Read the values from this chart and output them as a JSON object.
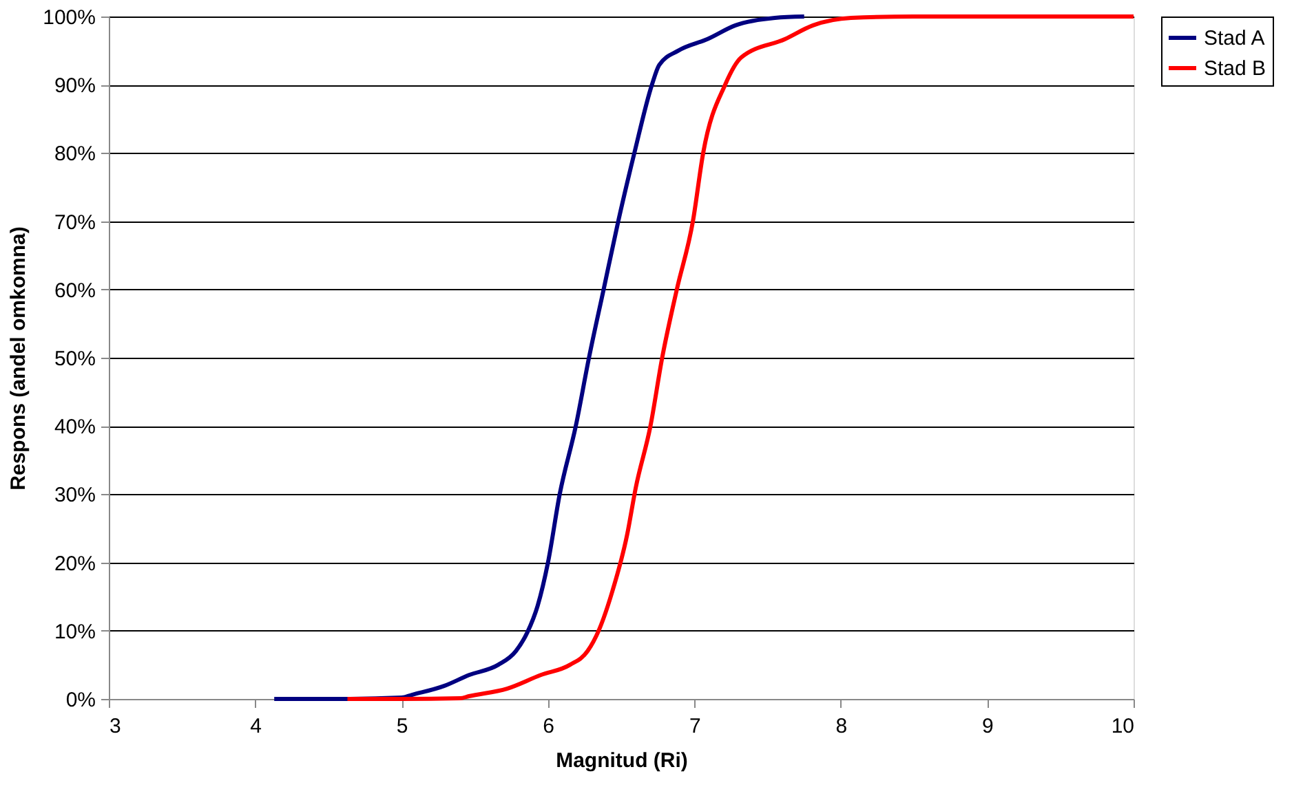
{
  "chart_data": {
    "type": "line",
    "xlabel": "Magnitud (Ri)",
    "ylabel": "Respons (andel omkomna)",
    "xlim": [
      3,
      10
    ],
    "xticks": [
      3,
      4,
      5,
      6,
      7,
      8,
      9,
      10
    ],
    "ylim": [
      0,
      100
    ],
    "yticks": [
      {
        "value": 0,
        "label": "0%"
      },
      {
        "value": 10,
        "label": "10%"
      },
      {
        "value": 20,
        "label": "20%"
      },
      {
        "value": 30,
        "label": "30%"
      },
      {
        "value": 40,
        "label": "40%"
      },
      {
        "value": 50,
        "label": "50%"
      },
      {
        "value": 60,
        "label": "60%"
      },
      {
        "value": 70,
        "label": "70%"
      },
      {
        "value": 80,
        "label": "80%"
      },
      {
        "value": 90,
        "label": "90%"
      },
      {
        "value": 100,
        "label": "100%"
      }
    ],
    "grid": "y",
    "legend": "right",
    "marker": "none",
    "line_style": "solid",
    "series": [
      {
        "name": "Stad A",
        "color": "#000080",
        "x": [
          4.13,
          4.6,
          5.0,
          5.07,
          5.29,
          5.46,
          5.66,
          5.78,
          5.86,
          5.93,
          6.0,
          6.08,
          6.19,
          6.28,
          6.38,
          6.48,
          6.59,
          6.71,
          6.76,
          6.89,
          7.09,
          7.28,
          7.55,
          7.75
        ],
        "values": [
          0,
          0,
          0.2,
          0.6,
          1.9,
          3.5,
          5,
          7,
          9.8,
          13.7,
          20,
          30,
          40,
          50,
          60,
          70,
          80,
          90,
          92.9,
          95,
          96.7,
          98.7,
          99.8,
          100
        ]
      },
      {
        "name": "Stad B",
        "color": "#ff0000",
        "x": [
          4.63,
          5.0,
          5.4,
          5.46,
          5.72,
          5.95,
          6.15,
          6.27,
          6.35,
          6.44,
          6.54,
          6.6,
          6.7,
          6.78,
          6.88,
          6.99,
          7.06,
          7.21,
          7.32,
          7.62,
          7.81,
          8.07,
          8.5,
          10
        ],
        "values": [
          0,
          0,
          0.1,
          0.4,
          1.5,
          3.5,
          5,
          7,
          10.2,
          15.8,
          24,
          31,
          40,
          50,
          60,
          70,
          80,
          90,
          94,
          96.7,
          98.7,
          99.8,
          100,
          100
        ]
      }
    ]
  }
}
